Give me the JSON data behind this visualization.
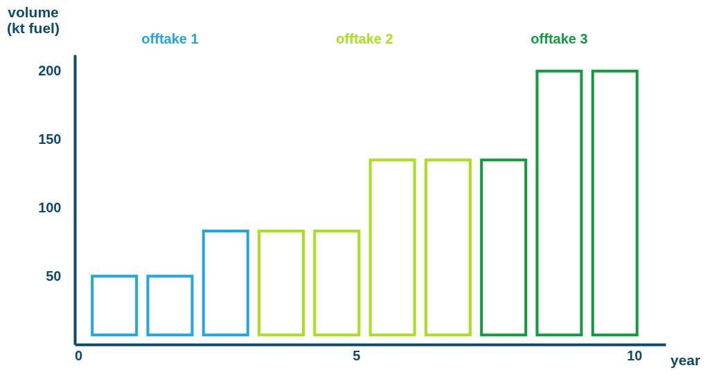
{
  "chart_data": {
    "type": "bar",
    "xlabel": "year",
    "ylabel": "volume (kt fuel)",
    "series": [
      {
        "name": "offtake 1",
        "color": "#1ea7e1",
        "x": [
          0.65,
          1.65,
          2.65
        ],
        "base": [
          7,
          7,
          7
        ],
        "values": [
          43,
          43,
          76
        ]
      },
      {
        "name": "offtake 2",
        "color": "#a8e01e",
        "x": [
          3.65,
          4.65,
          5.65,
          6.65
        ],
        "base": [
          7,
          7,
          7,
          7
        ],
        "values": [
          76,
          76,
          128,
          128
        ]
      },
      {
        "name": "offtake 3",
        "color": "#0e9c3c",
        "x": [
          7.65,
          8.65,
          9.65
        ],
        "base": [
          7,
          7,
          7
        ],
        "values": [
          128,
          193,
          193
        ]
      }
    ],
    "xlim": [
      0,
      10.5
    ],
    "ylim": [
      0,
      212
    ],
    "xticks": [
      0,
      5,
      10
    ],
    "yticks": [
      50,
      100,
      150,
      200
    ],
    "grid": false,
    "legend": "top"
  }
}
